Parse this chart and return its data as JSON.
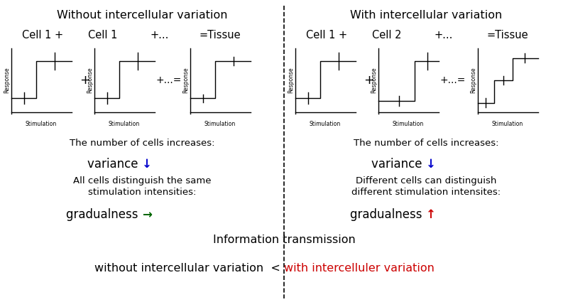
{
  "title_left": "Without intercellular variation",
  "title_right": "With intercellular variation",
  "cell_labels_left": [
    "Cell 1 +",
    "Cell 1",
    "+...",
    "=Tissue"
  ],
  "cell_labels_right": [
    "Cell 1 +",
    "Cell 2",
    "+...",
    "=Tissue"
  ],
  "bt_l1": "The number of cells increases:",
  "bt_l2": "variance ",
  "bt_l2_arrow": "↓",
  "bt_l2_arrow_color": "#0000cc",
  "bt_l3a": "All cells distinguish the same",
  "bt_l3b": "stimulation intensities:",
  "bt_l4": "gradualness ",
  "bt_l4_arrow": "→",
  "bt_l4_arrow_color": "#006600",
  "bt_r1": "The number of cells increases:",
  "bt_r2": "variance ",
  "bt_r2_arrow": "↓",
  "bt_r2_arrow_color": "#0000cc",
  "bt_r3a": "Different cells can distinguish",
  "bt_r3b": "different stimulation intensites:",
  "bt_r4": "gradualness ",
  "bt_r4_arrow": "↑",
  "bt_r4_arrow_color": "#cc0000",
  "info_line": "Information transmission",
  "comp_black": "without intercellular variation  < ",
  "comp_red": "with intercelluler variation",
  "bg": "#ffffff"
}
